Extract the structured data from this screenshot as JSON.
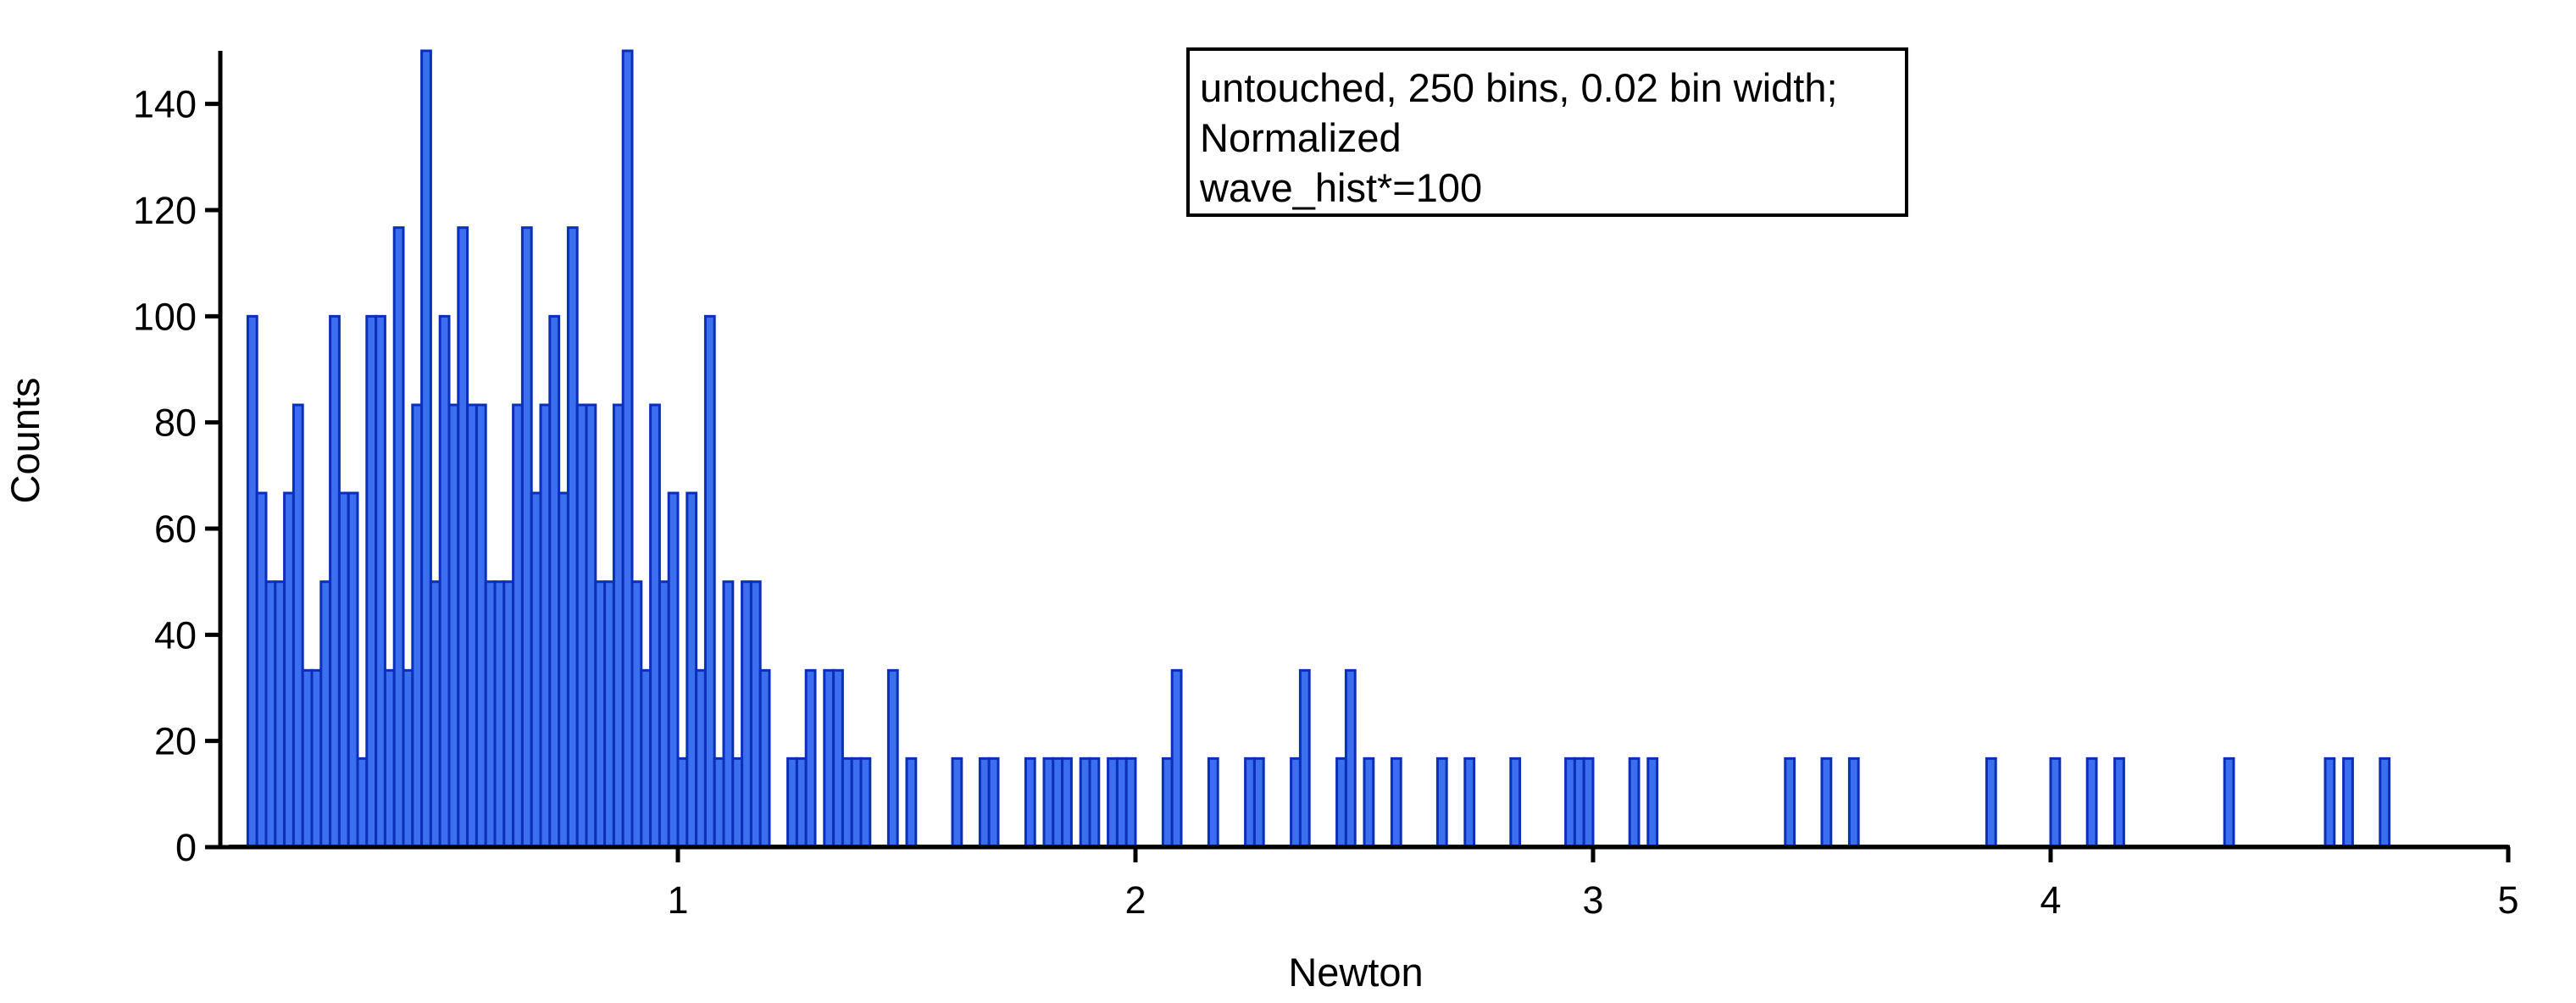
{
  "chart_data": {
    "type": "bar",
    "title": "",
    "xlabel": "Newton",
    "ylabel": "Counts",
    "xlim": [
      0,
      5
    ],
    "ylim": [
      0,
      150
    ],
    "bin_width": 0.02,
    "xticks": [
      1,
      2,
      3,
      4,
      5
    ],
    "yticks": [
      0,
      20,
      40,
      60,
      80,
      100,
      120,
      140
    ],
    "grid": false,
    "bar_color": "#3c6ff0",
    "edge_color": "#0a2fb8",
    "legend": {
      "placement": "top-center",
      "lines": [
        "untouched, 250 bins, 0.02 bin width;",
        "Normalized",
        "wave_hist*=100"
      ]
    },
    "bins": [
      {
        "x": 0.06,
        "y": 100
      },
      {
        "x": 0.08,
        "y": 66.7
      },
      {
        "x": 0.1,
        "y": 50
      },
      {
        "x": 0.12,
        "y": 50
      },
      {
        "x": 0.14,
        "y": 66.7
      },
      {
        "x": 0.16,
        "y": 83.3
      },
      {
        "x": 0.18,
        "y": 33.3
      },
      {
        "x": 0.2,
        "y": 33.3
      },
      {
        "x": 0.22,
        "y": 50
      },
      {
        "x": 0.24,
        "y": 100
      },
      {
        "x": 0.26,
        "y": 66.7
      },
      {
        "x": 0.28,
        "y": 66.7
      },
      {
        "x": 0.3,
        "y": 16.7
      },
      {
        "x": 0.32,
        "y": 100
      },
      {
        "x": 0.34,
        "y": 100
      },
      {
        "x": 0.36,
        "y": 33.3
      },
      {
        "x": 0.38,
        "y": 116.7
      },
      {
        "x": 0.4,
        "y": 33.3
      },
      {
        "x": 0.42,
        "y": 83.3
      },
      {
        "x": 0.44,
        "y": 150
      },
      {
        "x": 0.46,
        "y": 50
      },
      {
        "x": 0.48,
        "y": 100
      },
      {
        "x": 0.5,
        "y": 83.3
      },
      {
        "x": 0.52,
        "y": 116.7
      },
      {
        "x": 0.54,
        "y": 83.3
      },
      {
        "x": 0.56,
        "y": 83.3
      },
      {
        "x": 0.58,
        "y": 50
      },
      {
        "x": 0.6,
        "y": 50
      },
      {
        "x": 0.62,
        "y": 50
      },
      {
        "x": 0.64,
        "y": 83.3
      },
      {
        "x": 0.66,
        "y": 116.7
      },
      {
        "x": 0.68,
        "y": 66.7
      },
      {
        "x": 0.7,
        "y": 83.3
      },
      {
        "x": 0.72,
        "y": 100
      },
      {
        "x": 0.74,
        "y": 66.7
      },
      {
        "x": 0.76,
        "y": 116.7
      },
      {
        "x": 0.78,
        "y": 83.3
      },
      {
        "x": 0.8,
        "y": 83.3
      },
      {
        "x": 0.82,
        "y": 50
      },
      {
        "x": 0.84,
        "y": 50
      },
      {
        "x": 0.86,
        "y": 83.3
      },
      {
        "x": 0.88,
        "y": 150
      },
      {
        "x": 0.9,
        "y": 50
      },
      {
        "x": 0.92,
        "y": 33.3
      },
      {
        "x": 0.94,
        "y": 83.3
      },
      {
        "x": 0.96,
        "y": 50
      },
      {
        "x": 0.98,
        "y": 66.7
      },
      {
        "x": 1.0,
        "y": 16.7
      },
      {
        "x": 1.02,
        "y": 66.7
      },
      {
        "x": 1.04,
        "y": 33.3
      },
      {
        "x": 1.06,
        "y": 100
      },
      {
        "x": 1.08,
        "y": 16.7
      },
      {
        "x": 1.1,
        "y": 50
      },
      {
        "x": 1.12,
        "y": 16.7
      },
      {
        "x": 1.14,
        "y": 50
      },
      {
        "x": 1.16,
        "y": 50
      },
      {
        "x": 1.18,
        "y": 33.3
      },
      {
        "x": 1.24,
        "y": 16.7
      },
      {
        "x": 1.26,
        "y": 16.7
      },
      {
        "x": 1.28,
        "y": 33.3
      },
      {
        "x": 1.32,
        "y": 33.3
      },
      {
        "x": 1.34,
        "y": 33.3
      },
      {
        "x": 1.36,
        "y": 16.7
      },
      {
        "x": 1.38,
        "y": 16.7
      },
      {
        "x": 1.4,
        "y": 16.7
      },
      {
        "x": 1.46,
        "y": 33.3
      },
      {
        "x": 1.5,
        "y": 16.7
      },
      {
        "x": 1.6,
        "y": 16.7
      },
      {
        "x": 1.66,
        "y": 16.7
      },
      {
        "x": 1.68,
        "y": 16.7
      },
      {
        "x": 1.76,
        "y": 16.7
      },
      {
        "x": 1.8,
        "y": 16.7
      },
      {
        "x": 1.82,
        "y": 16.7
      },
      {
        "x": 1.84,
        "y": 16.7
      },
      {
        "x": 1.88,
        "y": 16.7
      },
      {
        "x": 1.9,
        "y": 16.7
      },
      {
        "x": 1.94,
        "y": 16.7
      },
      {
        "x": 1.96,
        "y": 16.7
      },
      {
        "x": 1.98,
        "y": 16.7
      },
      {
        "x": 2.06,
        "y": 16.7
      },
      {
        "x": 2.08,
        "y": 33.3
      },
      {
        "x": 2.16,
        "y": 16.7
      },
      {
        "x": 2.24,
        "y": 16.7
      },
      {
        "x": 2.26,
        "y": 16.7
      },
      {
        "x": 2.34,
        "y": 16.7
      },
      {
        "x": 2.36,
        "y": 33.3
      },
      {
        "x": 2.44,
        "y": 16.7
      },
      {
        "x": 2.46,
        "y": 33.3
      },
      {
        "x": 2.5,
        "y": 16.7
      },
      {
        "x": 2.56,
        "y": 16.7
      },
      {
        "x": 2.66,
        "y": 16.7
      },
      {
        "x": 2.72,
        "y": 16.7
      },
      {
        "x": 2.82,
        "y": 16.7
      },
      {
        "x": 2.94,
        "y": 16.7
      },
      {
        "x": 2.96,
        "y": 16.7
      },
      {
        "x": 2.98,
        "y": 16.7
      },
      {
        "x": 3.08,
        "y": 16.7
      },
      {
        "x": 3.12,
        "y": 16.7
      },
      {
        "x": 3.42,
        "y": 16.7
      },
      {
        "x": 3.5,
        "y": 16.7
      },
      {
        "x": 3.56,
        "y": 16.7
      },
      {
        "x": 3.86,
        "y": 16.7
      },
      {
        "x": 4.0,
        "y": 16.7
      },
      {
        "x": 4.08,
        "y": 16.7
      },
      {
        "x": 4.14,
        "y": 16.7
      },
      {
        "x": 4.38,
        "y": 16.7
      },
      {
        "x": 4.6,
        "y": 16.7
      },
      {
        "x": 4.64,
        "y": 16.7
      },
      {
        "x": 4.72,
        "y": 16.7
      }
    ]
  }
}
